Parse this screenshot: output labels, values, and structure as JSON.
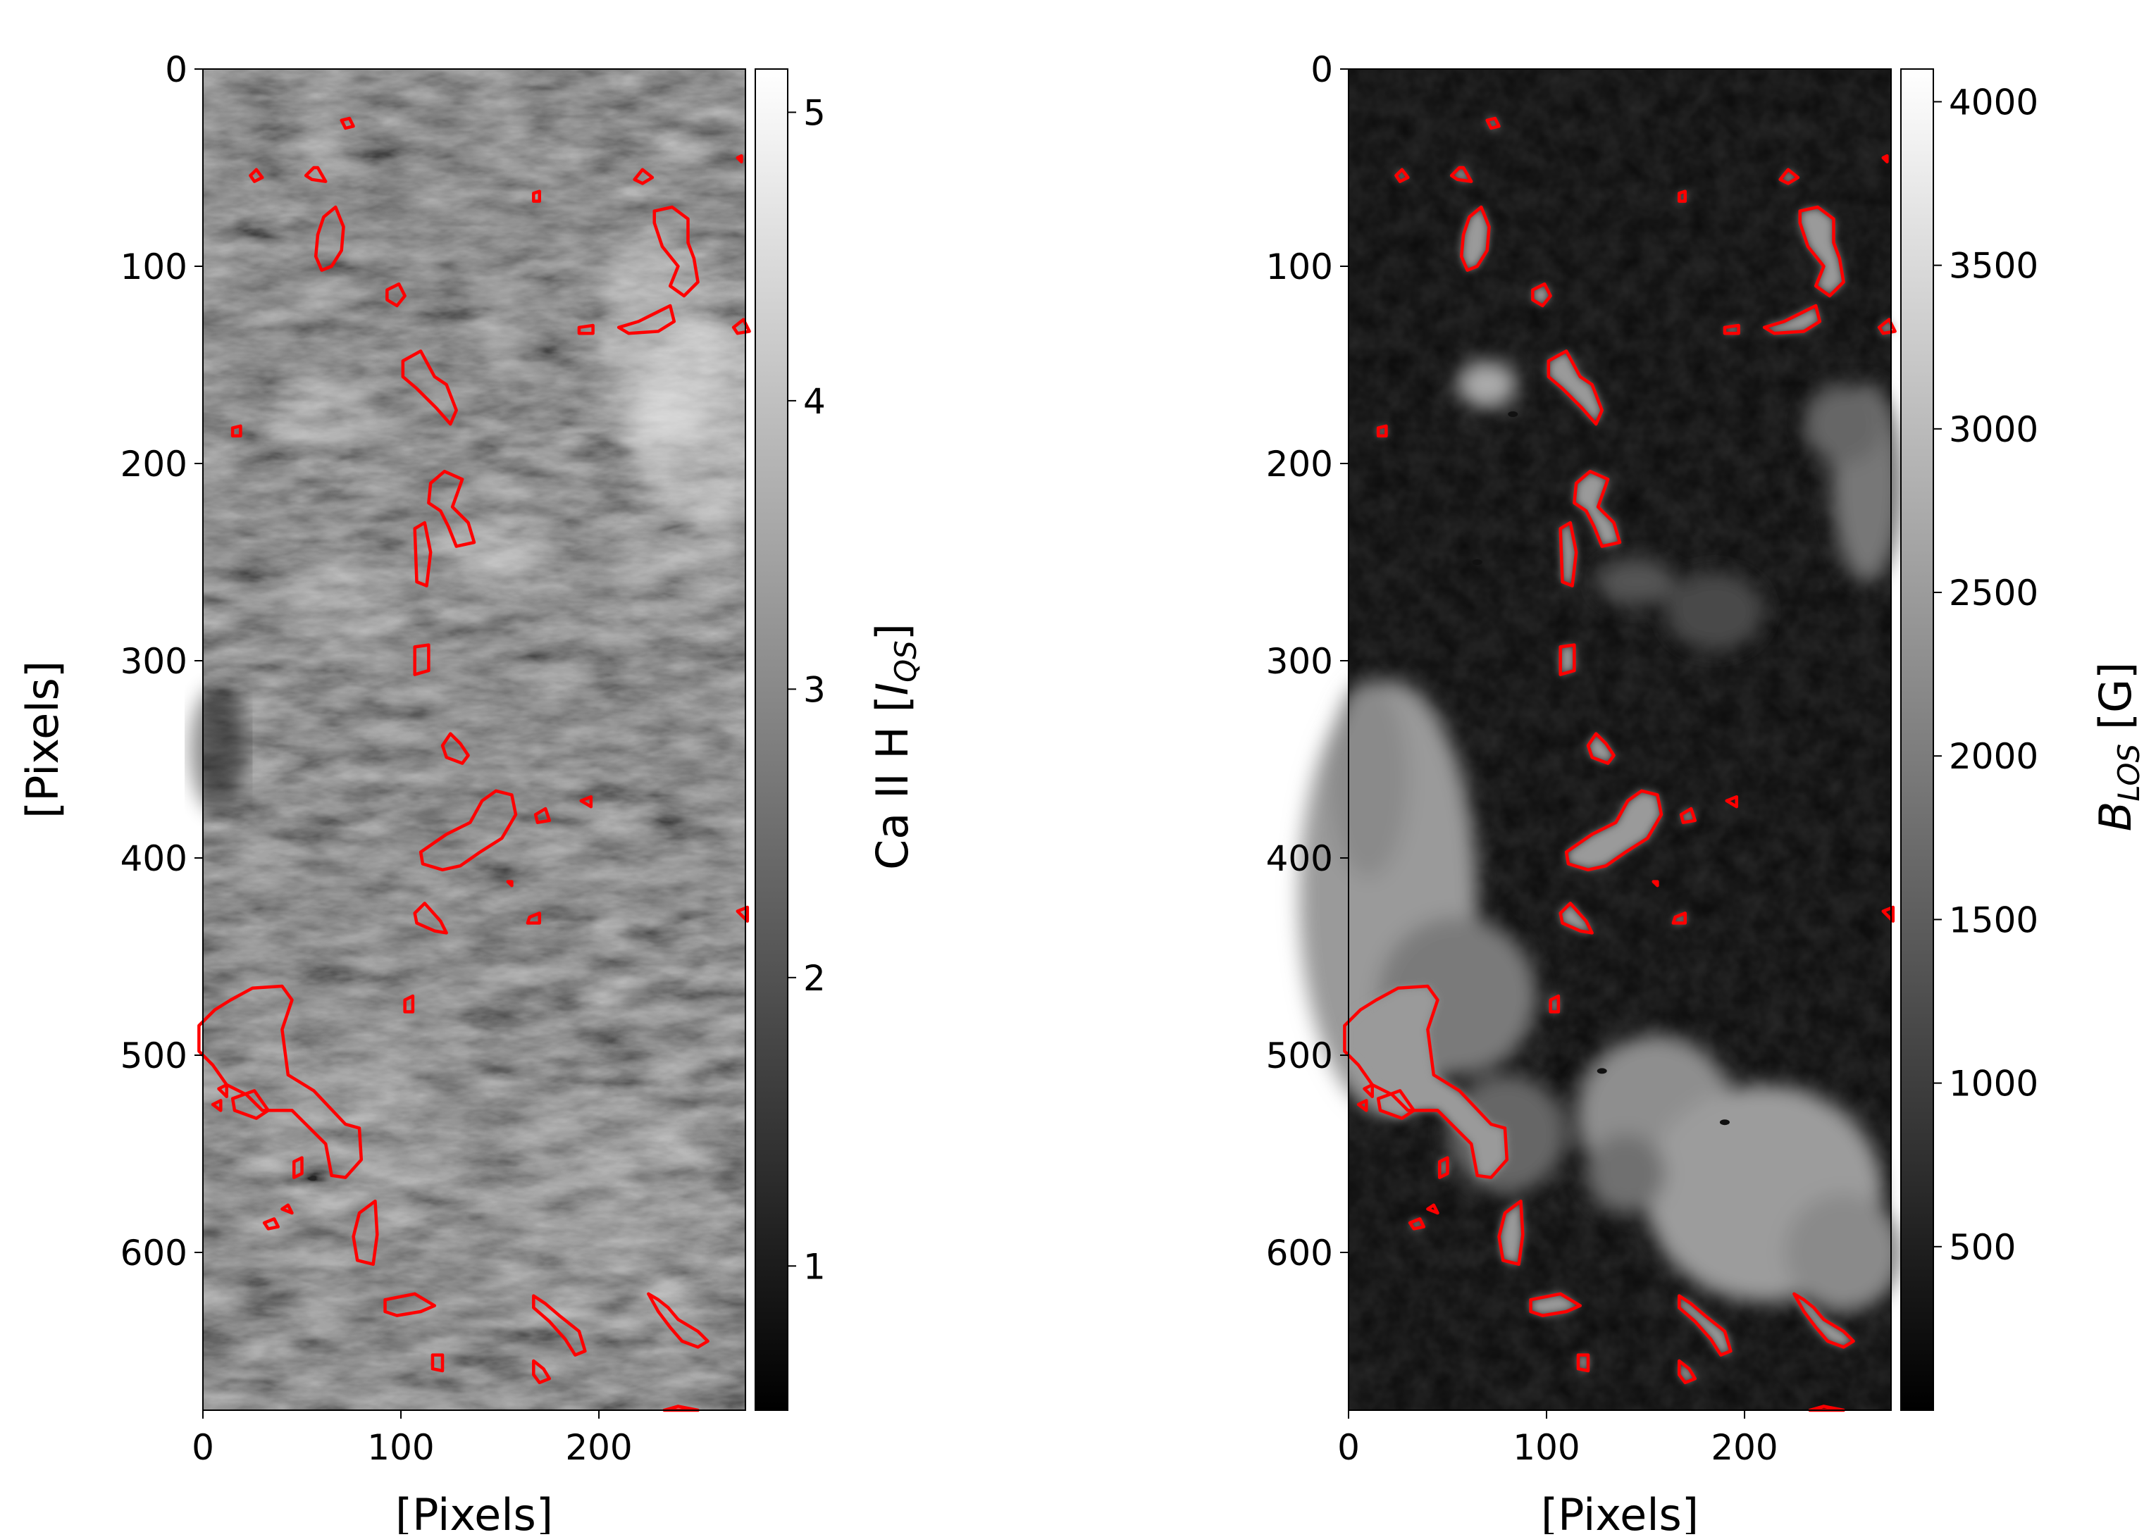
{
  "contour_color": "#ff0000",
  "chart_data": [
    {
      "type": "heatmap",
      "colormap": "gray",
      "ylabel": "[Pixels]",
      "xlabel": "[Pixels]",
      "xlim": [
        0,
        274
      ],
      "ylim": [
        680,
        0
      ],
      "x_ticks": [
        0,
        100,
        200
      ],
      "y_ticks": [
        0,
        100,
        200,
        300,
        400,
        500,
        600
      ],
      "colorbar": {
        "label_main": "Ca II H [",
        "label_italic": "I",
        "label_sub": "QS",
        "label_end": "]",
        "range": [
          0.5,
          5.15
        ],
        "ticks": [
          1,
          2,
          3,
          4,
          5
        ]
      }
    },
    {
      "type": "heatmap",
      "colormap": "gray",
      "ylabel": "",
      "xlabel": "[Pixels]",
      "xlim": [
        0,
        274
      ],
      "ylim": [
        680,
        0
      ],
      "x_ticks": [
        0,
        100,
        200
      ],
      "y_ticks": [
        0,
        100,
        200,
        300,
        400,
        500,
        600
      ],
      "colorbar": {
        "label_main": "",
        "label_italic": "B",
        "label_sub": "LOS",
        "label_end": " [G]",
        "range": [
          0,
          4100
        ],
        "ticks": [
          500,
          1000,
          1500,
          2000,
          2500,
          3000,
          3500,
          4000
        ]
      }
    }
  ],
  "contours": [
    [
      [
        58,
        50
      ],
      [
        62,
        57
      ],
      [
        55,
        56
      ],
      [
        52,
        54
      ],
      [
        56,
        50
      ]
    ],
    [
      [
        24,
        54
      ],
      [
        27,
        51
      ],
      [
        30,
        55
      ],
      [
        26,
        57
      ]
    ],
    [
      [
        70,
        26
      ],
      [
        74,
        25
      ],
      [
        76,
        29
      ],
      [
        72,
        30
      ]
    ],
    [
      [
        61,
        75
      ],
      [
        67,
        70
      ],
      [
        71,
        80
      ],
      [
        70,
        92
      ],
      [
        65,
        100
      ],
      [
        60,
        102
      ],
      [
        57,
        95
      ],
      [
        58,
        84
      ]
    ],
    [
      [
        93,
        112
      ],
      [
        99,
        109
      ],
      [
        102,
        115
      ],
      [
        98,
        120
      ],
      [
        93,
        117
      ]
    ],
    [
      [
        101,
        148
      ],
      [
        110,
        143
      ],
      [
        117,
        156
      ],
      [
        123,
        160
      ],
      [
        128,
        173
      ],
      [
        125,
        180
      ],
      [
        118,
        172
      ],
      [
        108,
        162
      ],
      [
        101,
        156
      ]
    ],
    [
      [
        115,
        210
      ],
      [
        122,
        204
      ],
      [
        131,
        208
      ],
      [
        126,
        222
      ],
      [
        134,
        230
      ],
      [
        137,
        240
      ],
      [
        128,
        242
      ],
      [
        124,
        232
      ],
      [
        120,
        224
      ],
      [
        114,
        220
      ]
    ],
    [
      [
        107,
        233
      ],
      [
        112,
        230
      ],
      [
        115,
        245
      ],
      [
        113,
        262
      ],
      [
        108,
        260
      ]
    ],
    [
      [
        107,
        293
      ],
      [
        114,
        292
      ],
      [
        114,
        305
      ],
      [
        107,
        307
      ]
    ],
    [
      [
        121,
        343
      ],
      [
        125,
        337
      ],
      [
        130,
        342
      ],
      [
        134,
        348
      ],
      [
        131,
        352
      ],
      [
        123,
        349
      ]
    ],
    [
      [
        110,
        397
      ],
      [
        123,
        388
      ],
      [
        135,
        382
      ],
      [
        141,
        371
      ],
      [
        148,
        366
      ],
      [
        156,
        368
      ],
      [
        158,
        378
      ],
      [
        151,
        390
      ],
      [
        140,
        397
      ],
      [
        130,
        404
      ],
      [
        121,
        406
      ],
      [
        111,
        403
      ]
    ],
    [
      [
        168,
        378
      ],
      [
        173,
        375
      ],
      [
        175,
        381
      ],
      [
        169,
        382
      ]
    ],
    [
      [
        191,
        371
      ],
      [
        196,
        369
      ],
      [
        196,
        374
      ]
    ],
    [
      [
        107,
        428
      ],
      [
        112,
        423
      ],
      [
        120,
        432
      ],
      [
        123,
        438
      ],
      [
        117,
        437
      ],
      [
        108,
        433
      ]
    ],
    [
      [
        -2,
        485
      ],
      [
        6,
        477
      ],
      [
        14,
        472
      ],
      [
        25,
        466
      ],
      [
        40,
        465
      ],
      [
        45,
        472
      ],
      [
        40,
        487
      ],
      [
        43,
        510
      ],
      [
        56,
        518
      ],
      [
        72,
        535
      ],
      [
        79,
        537
      ],
      [
        80,
        553
      ],
      [
        72,
        562
      ],
      [
        65,
        561
      ],
      [
        62,
        545
      ],
      [
        45,
        528
      ],
      [
        30,
        528
      ],
      [
        22,
        520
      ],
      [
        12,
        515
      ],
      [
        5,
        505
      ],
      [
        -2,
        498
      ]
    ],
    [
      [
        15,
        522
      ],
      [
        26,
        518
      ],
      [
        33,
        528
      ],
      [
        27,
        532
      ],
      [
        16,
        528
      ]
    ],
    [
      [
        79,
        580
      ],
      [
        87,
        574
      ],
      [
        88,
        591
      ],
      [
        86,
        606
      ],
      [
        78,
        604
      ],
      [
        76,
        592
      ]
    ],
    [
      [
        92,
        624
      ],
      [
        107,
        621
      ],
      [
        117,
        627
      ],
      [
        110,
        630
      ],
      [
        98,
        632
      ],
      [
        92,
        630
      ]
    ],
    [
      [
        116,
        652
      ],
      [
        121,
        652
      ],
      [
        121,
        660
      ],
      [
        116,
        659
      ]
    ],
    [
      [
        167,
        655
      ],
      [
        172,
        659
      ],
      [
        175,
        664
      ],
      [
        170,
        666
      ],
      [
        167,
        662
      ]
    ],
    [
      [
        167,
        622
      ],
      [
        173,
        626
      ],
      [
        180,
        632
      ],
      [
        190,
        640
      ],
      [
        193,
        650
      ],
      [
        188,
        652
      ],
      [
        183,
        644
      ],
      [
        175,
        635
      ],
      [
        167,
        628
      ]
    ],
    [
      [
        225,
        621
      ],
      [
        230,
        624
      ],
      [
        235,
        628
      ],
      [
        240,
        634
      ],
      [
        250,
        640
      ],
      [
        255,
        645
      ],
      [
        250,
        648
      ],
      [
        242,
        645
      ],
      [
        236,
        638
      ],
      [
        230,
        630
      ]
    ],
    [
      [
        218,
        56
      ],
      [
        222,
        51
      ],
      [
        227,
        55
      ],
      [
        222,
        58
      ]
    ],
    [
      [
        228,
        72
      ],
      [
        237,
        70
      ],
      [
        245,
        76
      ],
      [
        245,
        88
      ],
      [
        248,
        96
      ],
      [
        250,
        108
      ],
      [
        243,
        115
      ],
      [
        236,
        110
      ],
      [
        240,
        100
      ],
      [
        232,
        90
      ],
      [
        228,
        78
      ]
    ],
    [
      [
        210,
        131
      ],
      [
        220,
        128
      ],
      [
        228,
        124
      ],
      [
        236,
        120
      ],
      [
        238,
        128
      ],
      [
        230,
        133
      ],
      [
        215,
        134
      ]
    ],
    [
      [
        190,
        131
      ],
      [
        197,
        130
      ],
      [
        197,
        134
      ],
      [
        190,
        134
      ]
    ],
    [
      [
        268,
        131
      ],
      [
        273,
        127
      ],
      [
        276,
        133
      ],
      [
        270,
        134
      ]
    ],
    [
      [
        270,
        45
      ],
      [
        272,
        44
      ],
      [
        272,
        47
      ]
    ],
    [
      [
        165,
        430
      ],
      [
        170,
        428
      ],
      [
        170,
        433
      ],
      [
        164,
        433
      ]
    ],
    [
      [
        154,
        412
      ],
      [
        156,
        412
      ],
      [
        156,
        414
      ]
    ],
    [
      [
        31,
        585
      ],
      [
        36,
        583
      ],
      [
        38,
        587
      ],
      [
        33,
        588
      ]
    ],
    [
      [
        40,
        578
      ],
      [
        43,
        576
      ],
      [
        45,
        580
      ]
    ],
    [
      [
        46,
        554
      ],
      [
        50,
        552
      ],
      [
        50,
        560
      ],
      [
        46,
        562
      ]
    ],
    [
      [
        102,
        472
      ],
      [
        106,
        470
      ],
      [
        106,
        478
      ],
      [
        102,
        478
      ]
    ],
    [
      [
        15,
        182
      ],
      [
        19,
        181
      ],
      [
        19,
        186
      ],
      [
        15,
        186
      ]
    ],
    [
      [
        167,
        63
      ],
      [
        170,
        62
      ],
      [
        170,
        67
      ],
      [
        167,
        67
      ]
    ],
    [
      [
        233,
        680
      ],
      [
        240,
        678
      ],
      [
        250,
        680
      ]
    ],
    [
      [
        8,
        517
      ],
      [
        12,
        515
      ],
      [
        12,
        521
      ]
    ],
    [
      [
        5,
        525
      ],
      [
        9,
        523
      ],
      [
        9,
        528
      ]
    ],
    [
      [
        270,
        427
      ],
      [
        275,
        425
      ],
      [
        275,
        432
      ]
    ]
  ]
}
